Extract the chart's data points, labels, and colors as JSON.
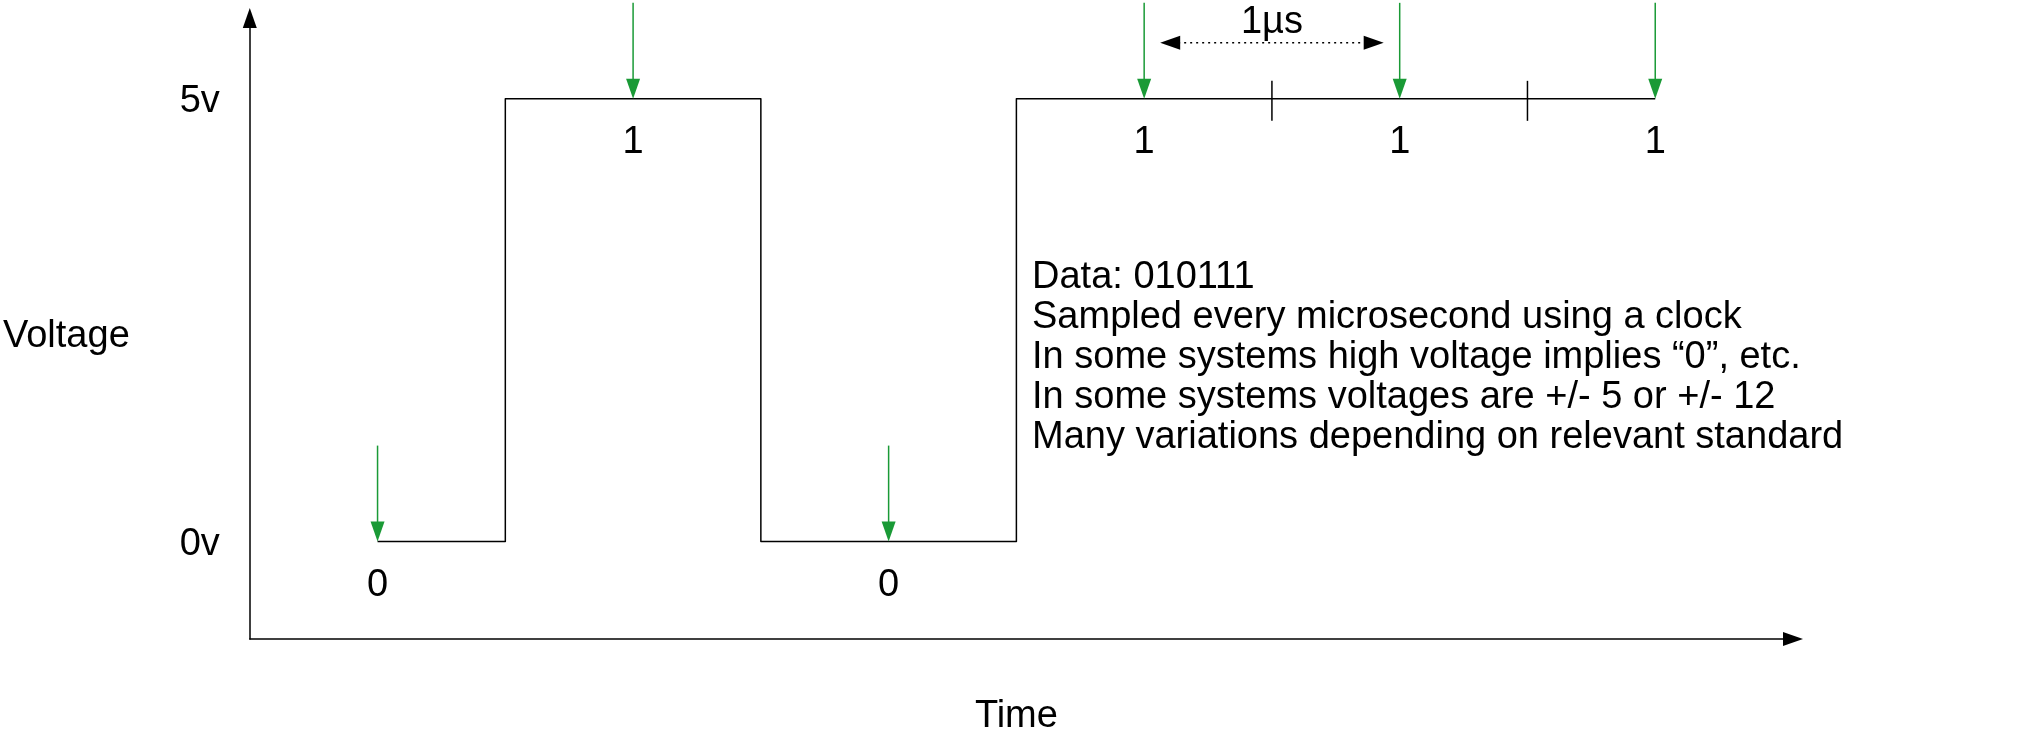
{
  "chart_data": {
    "type": "step",
    "categories": [
      null,
      null,
      null,
      null,
      null,
      null
    ],
    "values": [
      0,
      5,
      0,
      5,
      5,
      5
    ],
    "color": "#000000",
    "ylabel": "Voltage",
    "xlabel": "Time",
    "ylim": [
      -1.1,
      5.8
    ],
    "yticks": [
      {
        "value": 0,
        "label": "0v"
      },
      {
        "value": 5,
        "label": "5v"
      }
    ],
    "grid": false,
    "marker": "none",
    "line_style": "solid",
    "annotations": [
      {
        "text": "0",
        "y": 0
      },
      {
        "text": "1",
        "y": 5
      },
      {
        "text": "0",
        "y": 0
      },
      {
        "text": "1",
        "y": 5
      },
      {
        "text": "1",
        "y": 5
      },
      {
        "text": "1",
        "y": 5
      },
      "1µs",
      "Data: 010111",
      "Sampled every microsecond using a clock",
      "In some systems high voltage implies “0”, etc.",
      "In some systems voltages are +/- 5 or +/- 12",
      "Many variations depending on relevant standard"
    ]
  }
}
